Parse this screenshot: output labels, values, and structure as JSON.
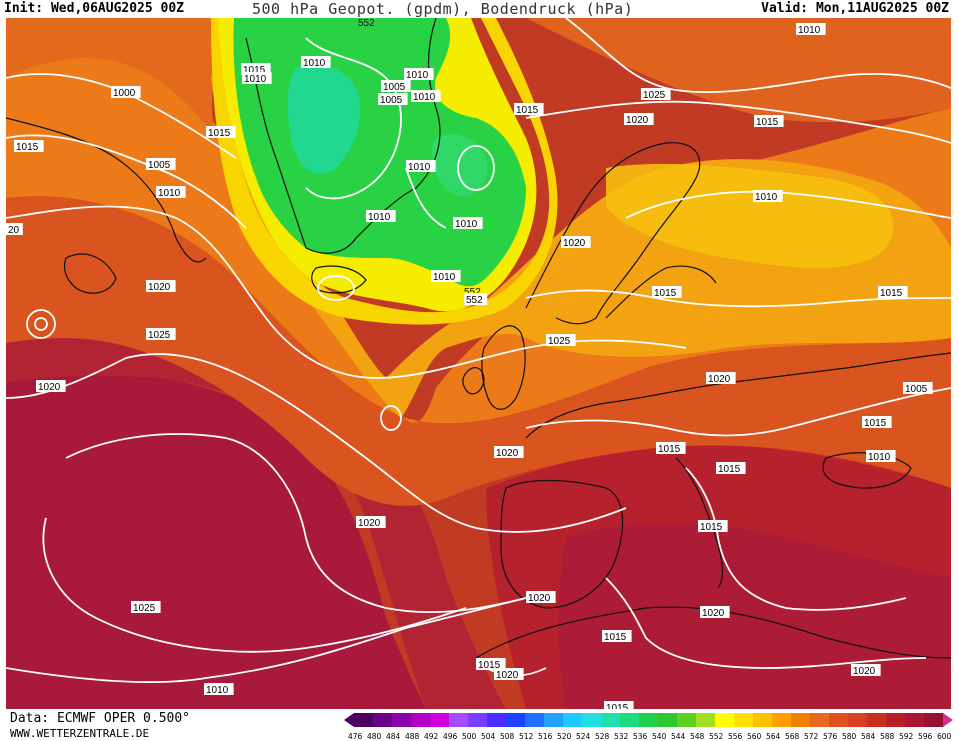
{
  "header": {
    "init": "Init: Wed,06AUG2025 00Z",
    "title": "500 hPa Geopot. (gpdm), Bodendruck (hPa)",
    "valid": "Valid: Mon,11AUG2025 00Z"
  },
  "footer": {
    "data": "Data: ECMWF OPER 0.500°",
    "site": "WWW.WETTERZENTRALE.DE"
  },
  "legend": {
    "values": [
      "476",
      "480",
      "484",
      "488",
      "492",
      "496",
      "500",
      "504",
      "508",
      "512",
      "516",
      "520",
      "524",
      "528",
      "532",
      "536",
      "540",
      "544",
      "548",
      "552",
      "556",
      "560",
      "564",
      "568",
      "572",
      "576",
      "580",
      "584",
      "588",
      "592",
      "596",
      "600"
    ],
    "colors": [
      "#4b0063",
      "#6a0088",
      "#8a00a8",
      "#b000c8",
      "#d200e0",
      "#a64cff",
      "#7a3cff",
      "#4a2cff",
      "#2040ff",
      "#2070ff",
      "#20a0ff",
      "#20c8ff",
      "#20e0e0",
      "#20e0b0",
      "#20d880",
      "#20d050",
      "#30c830",
      "#60d020",
      "#a0e020",
      "#ffff00",
      "#ffe000",
      "#ffc000",
      "#ffa000",
      "#f08000",
      "#e86820",
      "#e05020",
      "#d84020",
      "#c83020",
      "#b82028",
      "#a81830",
      "#981038",
      "#d03090"
    ]
  },
  "map": {
    "contour_label_552": "552",
    "pressure_labels": [
      "1010",
      "1015",
      "1010",
      "1005",
      "1010",
      "1015",
      "1025",
      "1020",
      "1015",
      "1010",
      "1000",
      "1015",
      "1005",
      "1010",
      "20",
      "1015",
      "1010",
      "1005",
      "1010",
      "1010",
      "1010",
      "1010",
      "1020",
      "552",
      "1020",
      "1025",
      "1015",
      "1015",
      "1020",
      "1025",
      "1020",
      "1005",
      "1015",
      "1010",
      "1020",
      "1015",
      "1015",
      "1020",
      "1025",
      "1015",
      "1020",
      "1020",
      "1015",
      "1015",
      "1020",
      "1010",
      "1015",
      "1020",
      "1010"
    ],
    "colors": {
      "background_red": "#c43a25",
      "deep_red": "#a51b33",
      "orange": "#e8641f",
      "light_orange": "#f08a14",
      "amber": "#f5b010",
      "yellow": "#f6e800",
      "green": "#26d246",
      "teal": "#22d88a",
      "isobar": "#ffffff",
      "coast": "#111111"
    }
  }
}
